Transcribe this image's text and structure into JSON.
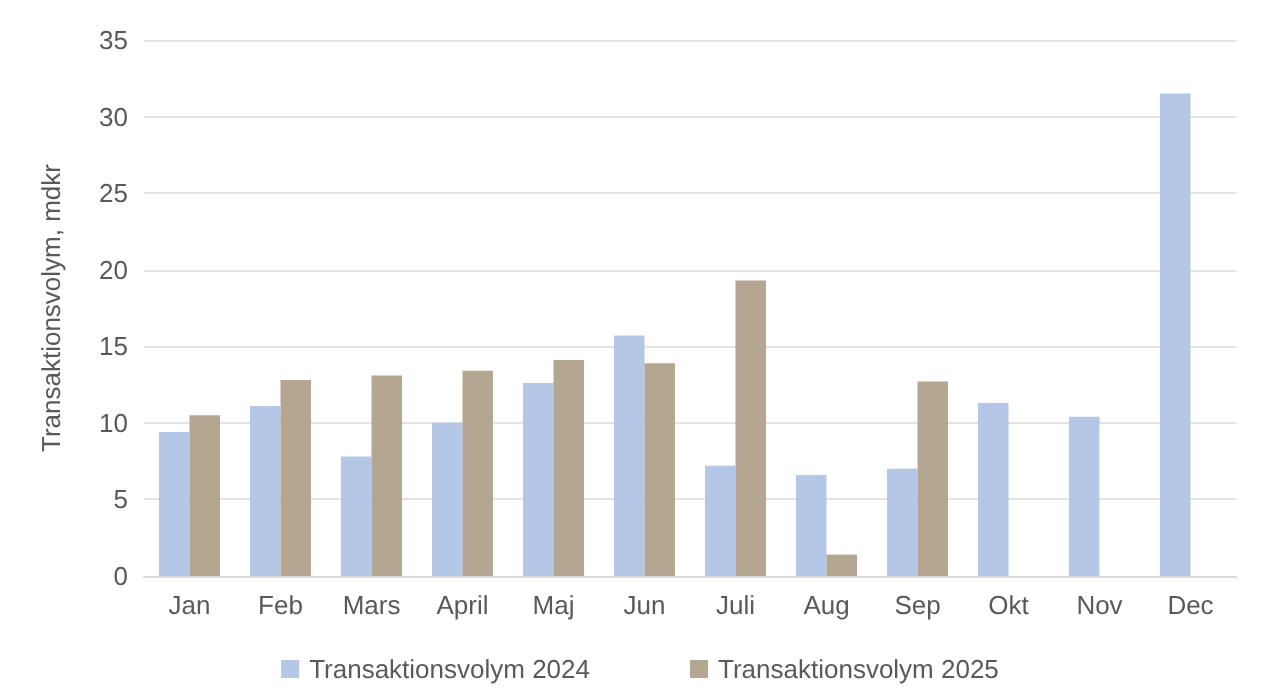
{
  "chart_data": {
    "type": "bar",
    "ylabel": "Transaktionsvolym, mdkr",
    "categories": [
      "Jan",
      "Feb",
      "Mars",
      "April",
      "Maj",
      "Jun",
      "Juli",
      "Aug",
      "Sep",
      "Okt",
      "Nov",
      "Dec"
    ],
    "series": [
      {
        "name": "Transaktionsvolym 2024",
        "color": "#b4c7e7",
        "values": [
          9.4,
          11.1,
          7.8,
          10.0,
          12.6,
          15.7,
          7.2,
          6.6,
          7.0,
          11.3,
          10.4,
          31.5
        ]
      },
      {
        "name": "Transaktionsvolym 2025",
        "color": "#b5a692",
        "values": [
          10.5,
          12.8,
          13.1,
          13.4,
          14.1,
          13.9,
          19.3,
          1.4,
          12.7,
          null,
          null,
          null
        ]
      }
    ],
    "ylim": [
      0,
      35
    ],
    "yticks": [
      0,
      5,
      10,
      15,
      20,
      25,
      30,
      35
    ],
    "grid": "y",
    "legend": "bottom"
  }
}
